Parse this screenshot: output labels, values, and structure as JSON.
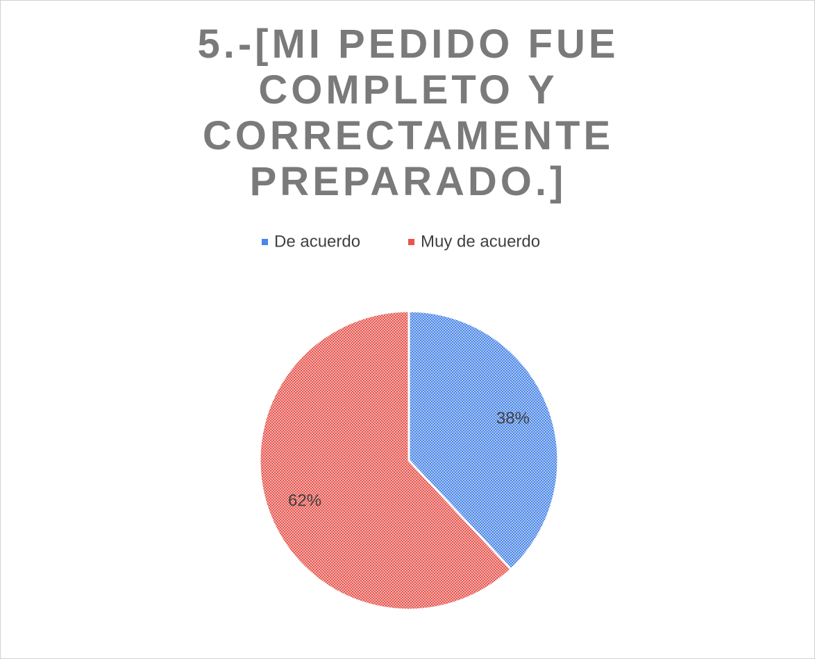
{
  "chart_data": {
    "type": "pie",
    "title": "5.-[MI PEDIDO FUE COMPLETO Y CORRECTAMENTE PREPARADO.]",
    "categories": [
      "De acuerdo",
      "Muy de acuerdo"
    ],
    "values": [
      38,
      62
    ],
    "value_labels": [
      "38%",
      "62%"
    ],
    "colors": [
      "#4a86e8",
      "#e8554e"
    ],
    "legend": "top"
  }
}
